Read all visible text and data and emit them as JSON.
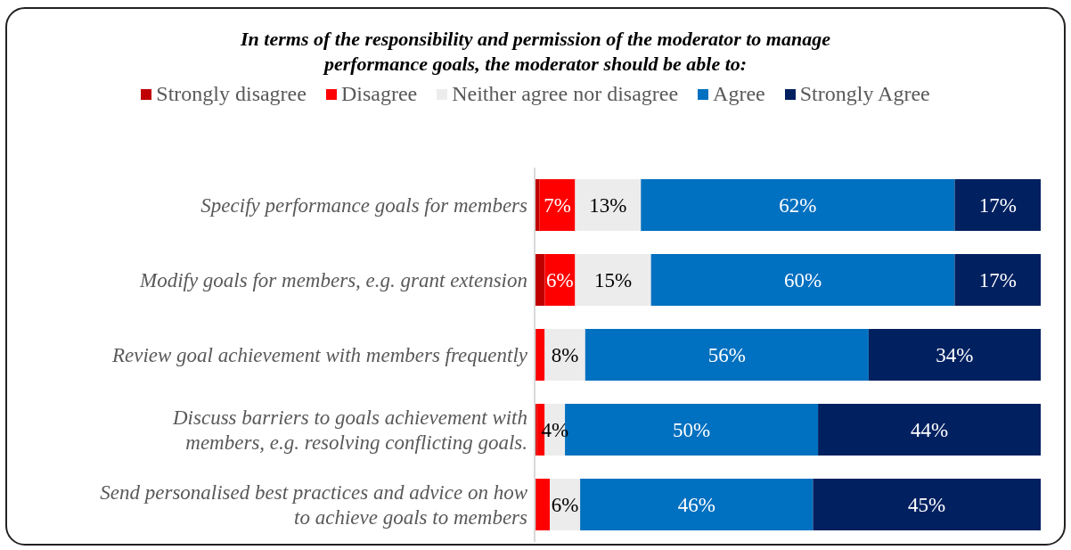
{
  "chart_data": {
    "type": "bar",
    "orientation": "horizontal",
    "stacked": true,
    "title": "In terms of the responsibility and permission of the moderator to manage performance goals, the moderator should be able to:",
    "categories": [
      "Specify performance goals for members",
      "Modify goals for members, e.g. grant extension",
      "Review goal achievement with members frequently",
      "Discuss barriers to goals achievement with members, e.g. resolving conflicting goals.",
      "Send personalised best practices and advice on how to achieve goals to members"
    ],
    "xlim": [
      0,
      100
    ],
    "legend": "top",
    "series": [
      {
        "name": "Strongly disagree",
        "color": "#c00000",
        "values": [
          1,
          2,
          0.3,
          0.4,
          0.3
        ],
        "value_labels": [
          null,
          null,
          null,
          null,
          null
        ]
      },
      {
        "name": "Disagree",
        "color": "#ff0000",
        "values": [
          7,
          6,
          1.7,
          1.6,
          2.7
        ],
        "value_labels": [
          "7%",
          "6%",
          null,
          null,
          null
        ]
      },
      {
        "name": "Neither agree nor disagree",
        "color": "#ececec",
        "values": [
          13,
          15,
          8,
          4,
          6
        ],
        "value_labels": [
          "13%",
          "15%",
          "8%",
          "4%",
          "6%"
        ]
      },
      {
        "name": "Agree",
        "color": "#0070c0",
        "values": [
          62,
          60,
          56,
          50,
          46
        ],
        "value_labels": [
          "62%",
          "60%",
          "56%",
          "50%",
          "46%"
        ]
      },
      {
        "name": "Strongly Agree",
        "color": "#002060",
        "values": [
          17,
          17,
          34,
          44,
          45
        ],
        "value_labels": [
          "17%",
          "17%",
          "34%",
          "44%",
          "45%"
        ]
      }
    ]
  }
}
